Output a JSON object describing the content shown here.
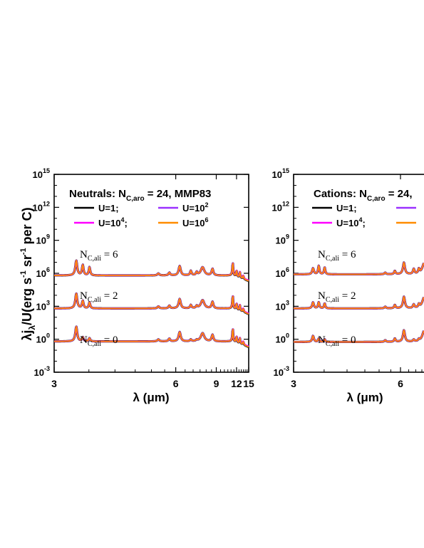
{
  "y_axis_label": {
    "main": "λj",
    "sub": "λ",
    "rest": "/U(erg s",
    "sup1": "-1",
    "mid": " sr",
    "sup2": "-1",
    "tail": " per C)"
  },
  "chart_data": [
    {
      "type": "line",
      "panel": "left",
      "title": {
        "prefix": "Neutrals: N",
        "sub": "C,aro",
        "suffix": " = 24, MMP83"
      },
      "xlabel": "λ (μm)",
      "ylabel": "λj_λ/U(erg s^-1 sr^-1 per C)",
      "x_scale": "reciprocal",
      "xlim": [
        3,
        15
      ],
      "xticks": [
        3,
        6,
        9,
        12,
        15
      ],
      "y_scale": "log",
      "ylim": [
        0.001,
        1000000000000000.0
      ],
      "yticks": [
        {
          "base": "10",
          "exp": "-3"
        },
        {
          "base": "10",
          "exp": "0"
        },
        {
          "base": "10",
          "exp": "3"
        },
        {
          "base": "10",
          "exp": "6"
        },
        {
          "base": "10",
          "exp": "9"
        },
        {
          "base": "10",
          "exp": "12"
        },
        {
          "base": "10",
          "exp": "15"
        }
      ],
      "legend": [
        {
          "name": "U=1;",
          "color": "#000000"
        },
        {
          "name": "U=10",
          "sup": "2",
          "color": "#9b30ff"
        },
        {
          "name": "U=10",
          "sup": "4",
          "tail": ";",
          "color": "#ff00ff"
        },
        {
          "name": "U=10",
          "sup": "6",
          "color": "#ff8c00"
        }
      ],
      "groups": [
        {
          "label": {
            "pre": "N",
            "sub": "C,ali",
            "post": " = 6"
          },
          "baseline_log": 5.8,
          "aliphatic_boost": 0.55
        },
        {
          "label": {
            "pre": "N",
            "sub": "C,ali",
            "post": " = 2"
          },
          "baseline_log": 2.8,
          "aliphatic_boost": 0.3
        },
        {
          "label": {
            "pre": "N",
            "sub": "C,ali",
            "post": " = 0"
          },
          "baseline_log": -0.2,
          "aliphatic_boost": 0.0
        }
      ],
      "features": [
        {
          "x": 3.3,
          "amp": 1.35,
          "w": 0.035
        },
        {
          "x": 3.4,
          "amp": 1.05,
          "w": 0.03,
          "aliphatic": true
        },
        {
          "x": 3.51,
          "amp": 0.85,
          "w": 0.03,
          "aliphatic": true
        },
        {
          "x": 5.25,
          "amp": 0.18,
          "w": 0.08
        },
        {
          "x": 5.7,
          "amp": 0.25,
          "w": 0.08
        },
        {
          "x": 6.2,
          "amp": 0.85,
          "w": 0.12
        },
        {
          "x": 6.85,
          "amp": 0.45,
          "w": 0.1,
          "aliphatic": true
        },
        {
          "x": 7.25,
          "amp": 0.3,
          "w": 0.1,
          "aliphatic": true
        },
        {
          "x": 7.7,
          "amp": 0.75,
          "w": 0.3
        },
        {
          "x": 8.6,
          "amp": 0.6,
          "w": 0.18
        },
        {
          "x": 11.3,
          "amp": 1.25,
          "w": 0.14
        },
        {
          "x": 12.0,
          "amp": 0.55,
          "w": 0.16
        },
        {
          "x": 12.7,
          "amp": 0.5,
          "w": 0.16
        },
        {
          "x": 13.5,
          "amp": 0.3,
          "w": 0.18
        }
      ],
      "continuum": {
        "k0": 0.2,
        "peak_slope": 0.0,
        "tail_drop": 0.85
      },
      "series_note": "four U curves overlap almost exactly"
    },
    {
      "type": "line",
      "panel": "right",
      "title": {
        "prefix": "Cations: N",
        "sub": "C,aro",
        "suffix": " = 24,"
      },
      "xlabel": "λ (μm)",
      "x_scale": "reciprocal",
      "xlim": [
        3,
        9
      ],
      "xticks": [
        3,
        6
      ],
      "y_scale": "log",
      "ylim": [
        0.001,
        1000000000000000.0
      ],
      "yticks": [
        {
          "base": "10",
          "exp": "-3"
        },
        {
          "base": "10",
          "exp": "0"
        },
        {
          "base": "10",
          "exp": "3"
        },
        {
          "base": "10",
          "exp": "6"
        },
        {
          "base": "10",
          "exp": "9"
        },
        {
          "base": "10",
          "exp": "12"
        },
        {
          "base": "10",
          "exp": "15"
        }
      ],
      "legend": [
        {
          "name": "U=1;",
          "color": "#000000"
        },
        {
          "name": "",
          "color": "#9b30ff"
        },
        {
          "name": "U=10",
          "sup": "4",
          "tail": ";",
          "color": "#ff00ff"
        },
        {
          "name": "",
          "color": "#ff8c00"
        }
      ],
      "groups": [
        {
          "label": {
            "pre": "N",
            "sub": "C,ali",
            "post": " = 6"
          },
          "baseline_log": 5.9,
          "aliphatic_boost": 0.55
        },
        {
          "label": {
            "pre": "N",
            "sub": "C,ali",
            "post": " = 2"
          },
          "baseline_log": 2.8,
          "aliphatic_boost": 0.3
        },
        {
          "label": {
            "pre": "N",
            "sub": "C,ali",
            "post": " = 0"
          },
          "baseline_log": -0.25,
          "aliphatic_boost": 0.0
        }
      ],
      "features": [
        {
          "x": 3.3,
          "amp": 0.55,
          "w": 0.035
        },
        {
          "x": 3.4,
          "amp": 0.85,
          "w": 0.03,
          "aliphatic": true
        },
        {
          "x": 3.51,
          "amp": 0.7,
          "w": 0.03,
          "aliphatic": true
        },
        {
          "x": 5.25,
          "amp": 0.15,
          "w": 0.08
        },
        {
          "x": 5.7,
          "amp": 0.3,
          "w": 0.08
        },
        {
          "x": 6.2,
          "amp": 1.05,
          "w": 0.13
        },
        {
          "x": 6.85,
          "amp": 0.5,
          "w": 0.12,
          "aliphatic": true
        },
        {
          "x": 7.25,
          "amp": 0.45,
          "w": 0.12,
          "aliphatic": true
        },
        {
          "x": 7.7,
          "amp": 1.0,
          "w": 0.35
        },
        {
          "x": 8.6,
          "amp": 0.85,
          "w": 0.2
        }
      ],
      "continuum": {
        "k0": 0.0,
        "peak_slope": 0.0,
        "tail_drop": 0.0
      },
      "series_note": "four U curves overlap almost exactly"
    }
  ]
}
